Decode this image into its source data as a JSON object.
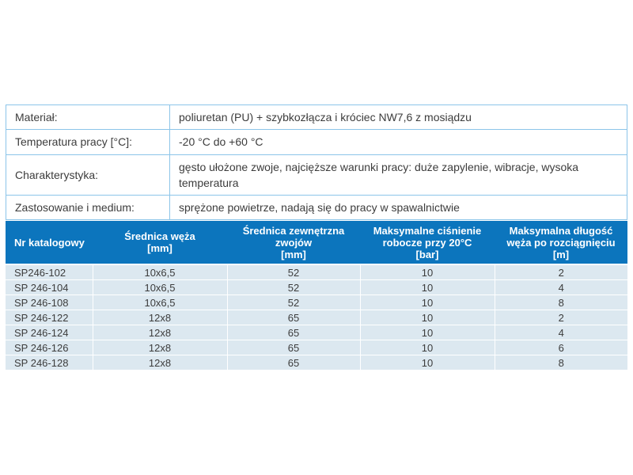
{
  "colors": {
    "header_bg": "#0c75bd",
    "header_text": "#ffffff",
    "row_bg": "#dce8f0",
    "spec_border": "#8cc5e9",
    "body_text": "#3c3c3c"
  },
  "spec_table": {
    "rows": [
      {
        "label": "Materiał:",
        "value": "poliuretan (PU) + szybkozłącza i króciec NW7,6 z mosiądzu"
      },
      {
        "label": "Temperatura pracy [°C]:",
        "value": "-20 °C do +60 °C"
      },
      {
        "label": "Charakterystyka:",
        "value": "gęsto ułożone zwoje, najcięższe warunki pracy: duże zapylenie, wibracje, wysoka temperatura"
      },
      {
        "label": "Zastosowanie i medium:",
        "value": "sprężone powietrze, nadają się do pracy w spawalnictwie"
      }
    ]
  },
  "product_table": {
    "headers": [
      "Nr katalogowy",
      "Średnica węża\n[mm]",
      "Średnica zewnętrzna\nzwojów\n[mm]",
      "Maksymalne ciśnienie\nrobocze przy 20°C\n[bar]",
      "Maksymalna długość\nwęża po rozciągnięciu\n[m]"
    ],
    "rows": [
      [
        "SP246-102",
        "10x6,5",
        "52",
        "10",
        "2"
      ],
      [
        "SP 246-104",
        "10x6,5",
        "52",
        "10",
        "4"
      ],
      [
        "SP 246-108",
        "10x6,5",
        "52",
        "10",
        "8"
      ],
      [
        "SP 246-122",
        "12x8",
        "65",
        "10",
        "2"
      ],
      [
        "SP 246-124",
        "12x8",
        "65",
        "10",
        "4"
      ],
      [
        "SP 246-126",
        "12x8",
        "65",
        "10",
        "6"
      ],
      [
        "SP 246-128",
        "12x8",
        "65",
        "10",
        "8"
      ]
    ]
  }
}
